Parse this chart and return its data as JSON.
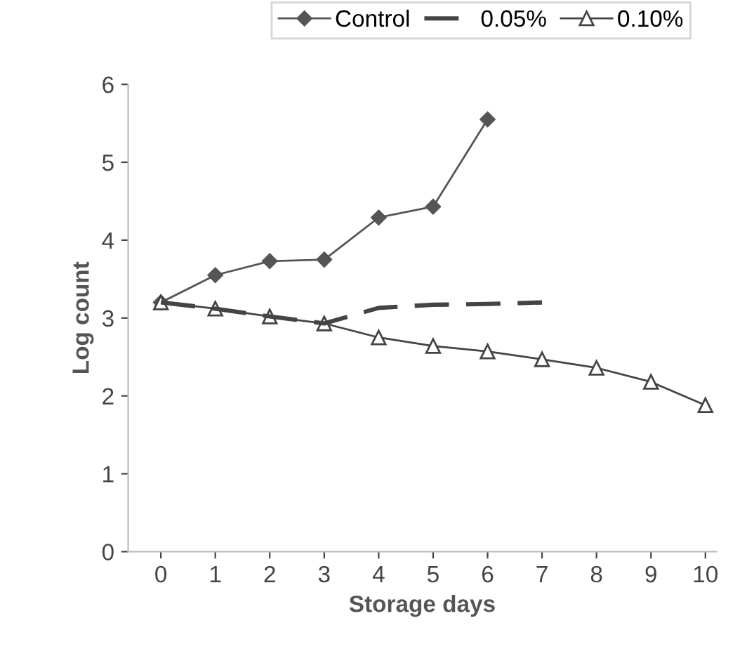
{
  "chart_data": {
    "type": "line",
    "xlabel": "Storage days",
    "ylabel": "Log count",
    "x": [
      0,
      1,
      2,
      3,
      4,
      5,
      6,
      7,
      8,
      9,
      10
    ],
    "series": [
      {
        "name": "Control",
        "color": "#555555",
        "marker": "diamond",
        "line_style": "solid",
        "values": [
          3.2,
          3.55,
          3.73,
          3.75,
          4.29,
          4.43,
          5.55,
          null,
          null,
          null,
          null
        ]
      },
      {
        "name": "0.05%",
        "color": "#444444",
        "line_style": "dashed",
        "values": [
          3.2,
          3.12,
          3.02,
          2.93,
          3.13,
          3.17,
          3.18,
          3.2,
          null,
          null,
          null
        ]
      },
      {
        "name": "0.10%",
        "color": "#444444",
        "marker": "triangle",
        "line_style": "solid",
        "values": [
          3.2,
          3.12,
          3.02,
          2.93,
          2.75,
          2.64,
          2.57,
          2.47,
          2.36,
          2.18,
          1.88
        ]
      }
    ],
    "xlim": [
      -0.6,
      10.2
    ],
    "ylim": [
      0,
      6
    ],
    "xticks": [
      0,
      1,
      2,
      3,
      4,
      5,
      6,
      7,
      8,
      9,
      10
    ],
    "yticks": [
      0,
      1,
      2,
      3,
      4,
      5,
      6
    ],
    "grid": false,
    "legend": "top"
  }
}
